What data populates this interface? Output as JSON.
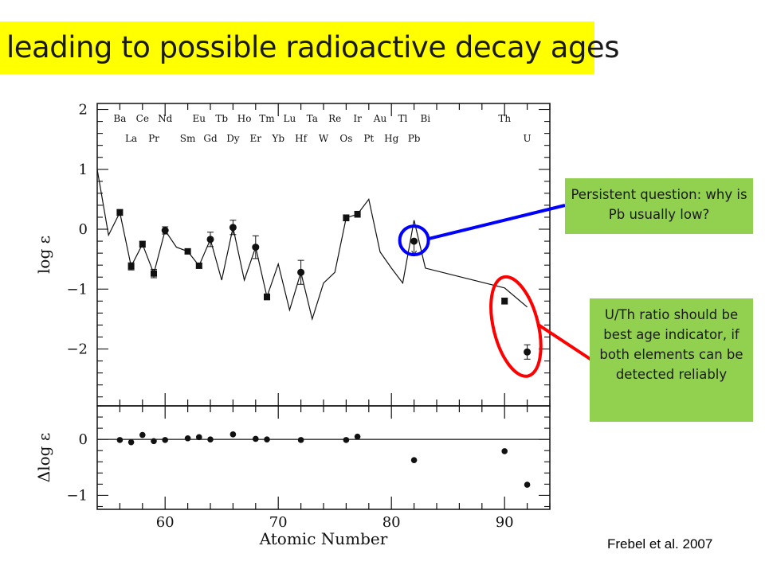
{
  "slide": {
    "title": "leading to possible radioactive decay ages",
    "citation": "Frebel et al. 2007",
    "annotations": [
      {
        "text": "Persistent question: why is Pb usually low?",
        "color": "#0000ff"
      },
      {
        "text": "U/Th ratio should be best age indicator, if both elements can be detected reliably",
        "color": "#ff0000"
      }
    ],
    "colors": {
      "title_bg": "#ffff00",
      "note_bg": "#92d050",
      "pb_circle": "#0000ff",
      "uth_ellipse": "#ff0000"
    }
  },
  "chart_data": {
    "type": "scatter",
    "xlabel": "Atomic Number",
    "xlim": [
      54,
      94
    ],
    "x_ticks": [
      "60",
      "70",
      "80",
      "90"
    ],
    "panels": [
      {
        "ylabel": "log ε",
        "ylim": [
          -2.95,
          2.1
        ],
        "y_ticks": [
          "2",
          "1",
          "0",
          "−1",
          "−2"
        ],
        "element_labels_top": [
          {
            "sym": "Ba",
            "z": 56
          },
          {
            "sym": "Ce",
            "z": 58
          },
          {
            "sym": "Nd",
            "z": 60
          },
          {
            "sym": "Eu",
            "z": 63
          },
          {
            "sym": "Tb",
            "z": 65
          },
          {
            "sym": "Ho",
            "z": 67
          },
          {
            "sym": "Tm",
            "z": 69
          },
          {
            "sym": "Lu",
            "z": 71
          },
          {
            "sym": "Ta",
            "z": 73
          },
          {
            "sym": "Re",
            "z": 75
          },
          {
            "sym": "Ir",
            "z": 77
          },
          {
            "sym": "Au",
            "z": 79
          },
          {
            "sym": "Tl",
            "z": 81
          },
          {
            "sym": "Bi",
            "z": 83
          },
          {
            "sym": "Th",
            "z": 90
          }
        ],
        "element_labels_bottom": [
          {
            "sym": "La",
            "z": 57
          },
          {
            "sym": "Pr",
            "z": 59
          },
          {
            "sym": "Sm",
            "z": 62
          },
          {
            "sym": "Gd",
            "z": 64
          },
          {
            "sym": "Dy",
            "z": 66
          },
          {
            "sym": "Er",
            "z": 68
          },
          {
            "sym": "Yb",
            "z": 70
          },
          {
            "sym": "Hf",
            "z": 72
          },
          {
            "sym": "W",
            "z": 74
          },
          {
            "sym": "Os",
            "z": 76
          },
          {
            "sym": "Pt",
            "z": 78
          },
          {
            "sym": "Hg",
            "z": 80
          },
          {
            "sym": "Pb",
            "z": 82
          },
          {
            "sym": "U",
            "z": 92
          }
        ],
        "series": [
          {
            "kind": "observed",
            "points": [
              {
                "x": 56,
                "y": 0.28,
                "err": 0.05,
                "marker": "square"
              },
              {
                "x": 57,
                "y": -0.62,
                "err": 0.06,
                "marker": "square"
              },
              {
                "x": 58,
                "y": -0.25,
                "err": 0.05,
                "marker": "square"
              },
              {
                "x": 59,
                "y": -0.74,
                "err": 0.07,
                "marker": "square"
              },
              {
                "x": 60,
                "y": -0.02,
                "err": 0.06,
                "marker": "circle"
              },
              {
                "x": 62,
                "y": -0.37,
                "err": 0.04,
                "marker": "square"
              },
              {
                "x": 63,
                "y": -0.61,
                "err": 0.04,
                "marker": "square"
              },
              {
                "x": 64,
                "y": -0.17,
                "err": 0.12,
                "marker": "circle"
              },
              {
                "x": 66,
                "y": 0.03,
                "err": 0.12,
                "marker": "circle"
              },
              {
                "x": 68,
                "y": -0.3,
                "err": 0.19,
                "marker": "circle"
              },
              {
                "x": 69,
                "y": -1.13,
                "err": 0.05,
                "marker": "square"
              },
              {
                "x": 72,
                "y": -0.72,
                "err": 0.2,
                "marker": "circle"
              },
              {
                "x": 76,
                "y": 0.19,
                "err": 0.05,
                "marker": "square"
              },
              {
                "x": 77,
                "y": 0.25,
                "err": 0.05,
                "marker": "square"
              },
              {
                "x": 82,
                "y": -0.2,
                "err": 0.0,
                "marker": "circle",
                "upper_limit": true
              },
              {
                "x": 90,
                "y": -1.2,
                "err": 0.05,
                "marker": "square"
              },
              {
                "x": 92,
                "y": -2.05,
                "err": 0.12,
                "marker": "circle"
              }
            ]
          },
          {
            "kind": "scaled solar r-process pattern",
            "points": [
              {
                "x": 54,
                "y": 1.0
              },
              {
                "x": 55,
                "y": -0.1
              },
              {
                "x": 56,
                "y": 0.28
              },
              {
                "x": 57,
                "y": -0.62
              },
              {
                "x": 58,
                "y": -0.25
              },
              {
                "x": 59,
                "y": -0.74
              },
              {
                "x": 60,
                "y": -0.02
              },
              {
                "x": 61,
                "y": -0.3
              },
              {
                "x": 62,
                "y": -0.37
              },
              {
                "x": 63,
                "y": -0.61
              },
              {
                "x": 64,
                "y": -0.17
              },
              {
                "x": 65,
                "y": -0.85
              },
              {
                "x": 66,
                "y": 0.03
              },
              {
                "x": 67,
                "y": -0.85
              },
              {
                "x": 68,
                "y": -0.3
              },
              {
                "x": 69,
                "y": -1.13
              },
              {
                "x": 70,
                "y": -0.58
              },
              {
                "x": 71,
                "y": -1.35
              },
              {
                "x": 72,
                "y": -0.72
              },
              {
                "x": 73,
                "y": -1.5
              },
              {
                "x": 74,
                "y": -0.9
              },
              {
                "x": 75,
                "y": -0.72
              },
              {
                "x": 76,
                "y": 0.19
              },
              {
                "x": 77,
                "y": 0.25
              },
              {
                "x": 78,
                "y": 0.5
              },
              {
                "x": 79,
                "y": -0.38
              },
              {
                "x": 80,
                "y": -0.65
              },
              {
                "x": 81,
                "y": -0.9
              },
              {
                "x": 82,
                "y": 0.15
              },
              {
                "x": 83,
                "y": -0.65
              },
              {
                "x": 90,
                "y": -0.98
              },
              {
                "x": 92,
                "y": -1.3
              }
            ]
          }
        ]
      },
      {
        "ylabel": "Δlog ε",
        "ylim": [
          -1.25,
          0.6
        ],
        "y_ticks": [
          "0",
          "−1"
        ],
        "reference_line_y": 0,
        "points": [
          {
            "x": 56,
            "y": -0.01
          },
          {
            "x": 57,
            "y": -0.05
          },
          {
            "x": 58,
            "y": 0.08
          },
          {
            "x": 59,
            "y": -0.03
          },
          {
            "x": 60,
            "y": -0.01
          },
          {
            "x": 62,
            "y": 0.02
          },
          {
            "x": 63,
            "y": 0.04
          },
          {
            "x": 64,
            "y": 0.0
          },
          {
            "x": 66,
            "y": 0.09
          },
          {
            "x": 68,
            "y": 0.01
          },
          {
            "x": 69,
            "y": 0.0
          },
          {
            "x": 72,
            "y": -0.01
          },
          {
            "x": 76,
            "y": -0.01
          },
          {
            "x": 77,
            "y": 0.05
          },
          {
            "x": 82,
            "y": -0.37
          },
          {
            "x": 90,
            "y": -0.21
          },
          {
            "x": 92,
            "y": -0.81
          }
        ]
      }
    ]
  }
}
